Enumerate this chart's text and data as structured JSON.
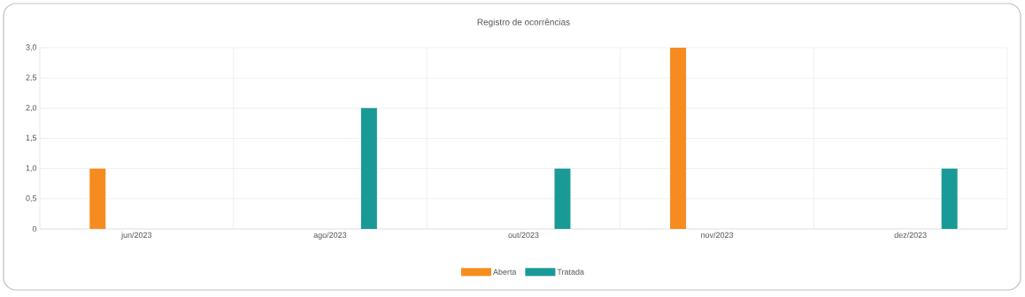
{
  "chart_data": {
    "type": "bar",
    "title": "Registro de ocorrências",
    "categories": [
      "jun/2023",
      "ago/2023",
      "out/2023",
      "nov/2023",
      "dez/2023"
    ],
    "series": [
      {
        "name": "Aberta",
        "color": "#f68c1f",
        "values": [
          1,
          0,
          0,
          3,
          0
        ]
      },
      {
        "name": "Tratada",
        "color": "#1a9a96",
        "values": [
          0,
          2,
          1,
          0,
          1
        ]
      }
    ],
    "ylim": [
      0,
      3
    ],
    "yticks": [
      {
        "value": 0,
        "label": "0"
      },
      {
        "value": 0.5,
        "label": "0,5"
      },
      {
        "value": 1,
        "label": "1,0"
      },
      {
        "value": 1.5,
        "label": "1,5"
      },
      {
        "value": 2,
        "label": "2,0"
      },
      {
        "value": 2.5,
        "label": "2,5"
      },
      {
        "value": 3,
        "label": "3,0"
      }
    ],
    "grid": true,
    "legend": "bottom"
  }
}
